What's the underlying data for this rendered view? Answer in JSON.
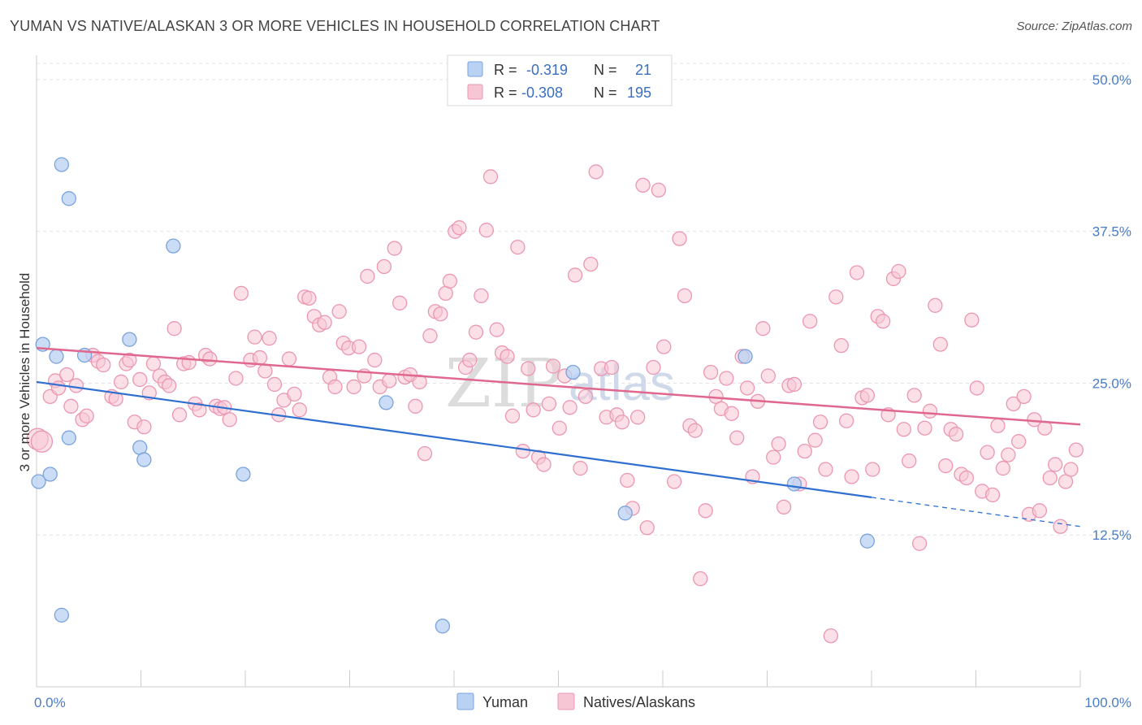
{
  "header": {
    "title": "YUMAN VS NATIVE/ALASKAN 3 OR MORE VEHICLES IN HOUSEHOLD CORRELATION CHART",
    "source": "Source: ZipAtlas.com"
  },
  "legend": {
    "r_label": "R =",
    "n_label": "N =",
    "rows": [
      {
        "r": "-0.319",
        "n": "21"
      },
      {
        "r": "-0.308",
        "n": "195"
      }
    ]
  },
  "watermark": {
    "zip": "ZIP",
    "atlas": "atlas"
  },
  "colors": {
    "yuman_fill": "#b9d1f3",
    "yuman_stroke": "#7aa3dd",
    "yuman_line": "#2f6fd0",
    "native_fill": "#f7c6d5",
    "native_stroke": "#eb97b2",
    "native_line": "#e0688f"
  },
  "chart_data": {
    "type": "scatter",
    "xlabel": "",
    "ylabel": "3 or more Vehicles in Household",
    "xlim": [
      0,
      100
    ],
    "ylim": [
      0,
      52
    ],
    "x_tick_labels": [
      "0.0%",
      "100.0%"
    ],
    "y_ticks": [
      12.5,
      25.0,
      37.5,
      50.0
    ],
    "y_tick_labels": [
      "12.5%",
      "25.0%",
      "37.5%",
      "50.0%"
    ],
    "grid": "dashed horizontal",
    "legend_placement": "top-center",
    "series": [
      {
        "name": "Yuman",
        "points": [
          [
            0.2,
            16.9
          ],
          [
            0.6,
            28.2
          ],
          [
            1.3,
            17.5
          ],
          [
            1.9,
            27.2
          ],
          [
            2.4,
            43.0
          ],
          [
            2.4,
            5.9
          ],
          [
            3.1,
            40.2
          ],
          [
            3.1,
            20.5
          ],
          [
            4.6,
            27.3
          ],
          [
            8.9,
            28.6
          ],
          [
            9.9,
            19.7
          ],
          [
            10.3,
            18.7
          ],
          [
            13.1,
            36.3
          ],
          [
            19.8,
            17.5
          ],
          [
            33.5,
            23.4
          ],
          [
            38.9,
            5.0
          ],
          [
            51.4,
            25.9
          ],
          [
            56.4,
            14.3
          ],
          [
            67.9,
            27.2
          ],
          [
            72.6,
            16.7
          ],
          [
            79.6,
            12.0
          ]
        ],
        "trend": {
          "x0": 0,
          "y0": 25.1,
          "x1": 80,
          "y1": 15.6,
          "dashed_to": 100,
          "dashed_y": 13.2
        }
      },
      {
        "name": "Natives/Alaskans",
        "points": [
          [
            0.1,
            20.4
          ],
          [
            0.5,
            20.2
          ],
          [
            1.3,
            23.9
          ],
          [
            1.8,
            25.2
          ],
          [
            2.1,
            24.6
          ],
          [
            2.9,
            25.7
          ],
          [
            3.3,
            23.1
          ],
          [
            3.8,
            24.8
          ],
          [
            4.4,
            22.0
          ],
          [
            4.8,
            22.3
          ],
          [
            5.4,
            27.3
          ],
          [
            5.9,
            26.8
          ],
          [
            6.4,
            26.5
          ],
          [
            7.2,
            23.9
          ],
          [
            7.6,
            23.7
          ],
          [
            8.1,
            25.1
          ],
          [
            8.6,
            26.6
          ],
          [
            8.9,
            26.9
          ],
          [
            9.4,
            21.8
          ],
          [
            9.9,
            25.3
          ],
          [
            10.3,
            21.4
          ],
          [
            10.8,
            24.2
          ],
          [
            11.2,
            26.6
          ],
          [
            11.8,
            25.6
          ],
          [
            12.3,
            25.1
          ],
          [
            12.7,
            24.8
          ],
          [
            13.2,
            29.5
          ],
          [
            13.7,
            22.4
          ],
          [
            14.1,
            26.6
          ],
          [
            14.6,
            26.7
          ],
          [
            15.2,
            23.3
          ],
          [
            15.6,
            22.8
          ],
          [
            16.2,
            27.3
          ],
          [
            16.6,
            27.0
          ],
          [
            17.2,
            23.1
          ],
          [
            17.6,
            22.9
          ],
          [
            18.0,
            23.0
          ],
          [
            18.5,
            22.0
          ],
          [
            19.1,
            25.4
          ],
          [
            19.6,
            32.4
          ],
          [
            20.5,
            26.9
          ],
          [
            20.9,
            28.8
          ],
          [
            21.4,
            27.1
          ],
          [
            21.9,
            26.0
          ],
          [
            22.3,
            28.7
          ],
          [
            22.8,
            24.9
          ],
          [
            23.2,
            22.4
          ],
          [
            23.7,
            23.6
          ],
          [
            24.2,
            27.0
          ],
          [
            24.7,
            24.1
          ],
          [
            25.2,
            22.8
          ],
          [
            25.7,
            32.1
          ],
          [
            26.1,
            32.0
          ],
          [
            26.6,
            30.5
          ],
          [
            27.1,
            29.8
          ],
          [
            27.6,
            30.0
          ],
          [
            28.1,
            25.5
          ],
          [
            28.6,
            24.7
          ],
          [
            29.0,
            30.9
          ],
          [
            29.4,
            28.3
          ],
          [
            29.9,
            27.9
          ],
          [
            30.4,
            24.7
          ],
          [
            30.9,
            28.0
          ],
          [
            31.4,
            25.6
          ],
          [
            31.7,
            33.8
          ],
          [
            32.4,
            26.9
          ],
          [
            32.9,
            24.7
          ],
          [
            33.3,
            34.6
          ],
          [
            33.8,
            25.2
          ],
          [
            34.3,
            36.1
          ],
          [
            34.8,
            31.6
          ],
          [
            35.3,
            25.5
          ],
          [
            35.8,
            25.7
          ],
          [
            36.3,
            23.1
          ],
          [
            36.7,
            25.1
          ],
          [
            37.2,
            19.2
          ],
          [
            37.7,
            28.9
          ],
          [
            38.2,
            30.9
          ],
          [
            38.7,
            30.7
          ],
          [
            39.2,
            32.4
          ],
          [
            39.6,
            33.4
          ],
          [
            40.1,
            37.5
          ],
          [
            40.5,
            37.8
          ],
          [
            41.1,
            26.3
          ],
          [
            41.5,
            26.9
          ],
          [
            42.1,
            29.2
          ],
          [
            42.6,
            32.2
          ],
          [
            43.1,
            37.6
          ],
          [
            43.5,
            42.0
          ],
          [
            44.1,
            29.4
          ],
          [
            44.6,
            27.5
          ],
          [
            45.1,
            27.2
          ],
          [
            45.6,
            22.3
          ],
          [
            46.1,
            36.2
          ],
          [
            46.6,
            19.4
          ],
          [
            47.1,
            26.2
          ],
          [
            47.6,
            22.8
          ],
          [
            48.1,
            18.9
          ],
          [
            48.6,
            18.3
          ],
          [
            49.1,
            23.3
          ],
          [
            49.5,
            26.4
          ],
          [
            50.1,
            21.3
          ],
          [
            50.6,
            25.6
          ],
          [
            51.1,
            23.0
          ],
          [
            51.6,
            33.9
          ],
          [
            52.1,
            18.0
          ],
          [
            52.6,
            23.9
          ],
          [
            53.1,
            34.8
          ],
          [
            53.6,
            42.4
          ],
          [
            54.1,
            26.2
          ],
          [
            54.6,
            22.2
          ],
          [
            55.1,
            26.3
          ],
          [
            55.6,
            22.4
          ],
          [
            56.1,
            21.8
          ],
          [
            56.6,
            17.0
          ],
          [
            57.1,
            14.7
          ],
          [
            57.6,
            22.2
          ],
          [
            58.1,
            41.3
          ],
          [
            58.5,
            13.1
          ],
          [
            59.1,
            26.3
          ],
          [
            59.6,
            40.9
          ],
          [
            60.1,
            28.0
          ],
          [
            61.1,
            16.9
          ],
          [
            61.6,
            36.9
          ],
          [
            62.1,
            32.2
          ],
          [
            62.6,
            21.5
          ],
          [
            63.1,
            21.1
          ],
          [
            63.6,
            8.9
          ],
          [
            64.1,
            14.5
          ],
          [
            64.6,
            25.9
          ],
          [
            65.1,
            23.9
          ],
          [
            65.6,
            22.9
          ],
          [
            66.1,
            25.4
          ],
          [
            66.6,
            22.5
          ],
          [
            67.1,
            20.5
          ],
          [
            67.6,
            27.2
          ],
          [
            68.1,
            24.6
          ],
          [
            68.6,
            17.3
          ],
          [
            69.1,
            23.5
          ],
          [
            69.6,
            29.5
          ],
          [
            70.1,
            25.6
          ],
          [
            70.6,
            18.9
          ],
          [
            71.1,
            20.0
          ],
          [
            71.6,
            14.8
          ],
          [
            72.1,
            24.8
          ],
          [
            72.6,
            24.9
          ],
          [
            73.1,
            16.7
          ],
          [
            73.6,
            19.4
          ],
          [
            74.1,
            30.1
          ],
          [
            74.6,
            20.3
          ],
          [
            75.1,
            21.8
          ],
          [
            75.6,
            17.9
          ],
          [
            76.1,
            4.2
          ],
          [
            76.6,
            32.1
          ],
          [
            77.1,
            28.1
          ],
          [
            77.6,
            21.9
          ],
          [
            78.1,
            17.3
          ],
          [
            78.6,
            34.1
          ],
          [
            79.1,
            23.8
          ],
          [
            79.6,
            24.0
          ],
          [
            80.1,
            17.9
          ],
          [
            80.6,
            30.5
          ],
          [
            81.1,
            30.1
          ],
          [
            81.6,
            22.4
          ],
          [
            82.1,
            33.6
          ],
          [
            82.6,
            34.2
          ],
          [
            83.1,
            21.2
          ],
          [
            83.6,
            18.6
          ],
          [
            84.1,
            24.0
          ],
          [
            84.6,
            11.8
          ],
          [
            85.1,
            21.3
          ],
          [
            85.6,
            22.7
          ],
          [
            86.1,
            31.4
          ],
          [
            86.6,
            28.2
          ],
          [
            87.1,
            18.2
          ],
          [
            87.6,
            21.2
          ],
          [
            88.1,
            20.8
          ],
          [
            88.6,
            17.5
          ],
          [
            89.1,
            17.2
          ],
          [
            89.6,
            30.2
          ],
          [
            90.1,
            24.6
          ],
          [
            90.6,
            16.1
          ],
          [
            91.1,
            19.3
          ],
          [
            91.6,
            15.8
          ],
          [
            92.1,
            21.5
          ],
          [
            92.6,
            18.0
          ],
          [
            93.1,
            19.1
          ],
          [
            93.6,
            23.3
          ],
          [
            94.1,
            20.2
          ],
          [
            94.6,
            23.9
          ],
          [
            95.1,
            14.2
          ],
          [
            95.6,
            22.0
          ],
          [
            96.1,
            14.5
          ],
          [
            96.6,
            21.3
          ],
          [
            97.1,
            17.2
          ],
          [
            97.6,
            18.3
          ],
          [
            98.1,
            13.2
          ],
          [
            98.6,
            16.9
          ],
          [
            99.1,
            17.9
          ],
          [
            99.6,
            19.5
          ]
        ],
        "trend": {
          "x0": 0,
          "y0": 27.9,
          "x1": 100,
          "y1": 21.6
        }
      }
    ]
  },
  "bottom_legend": [
    "Yuman",
    "Natives/Alaskans"
  ]
}
